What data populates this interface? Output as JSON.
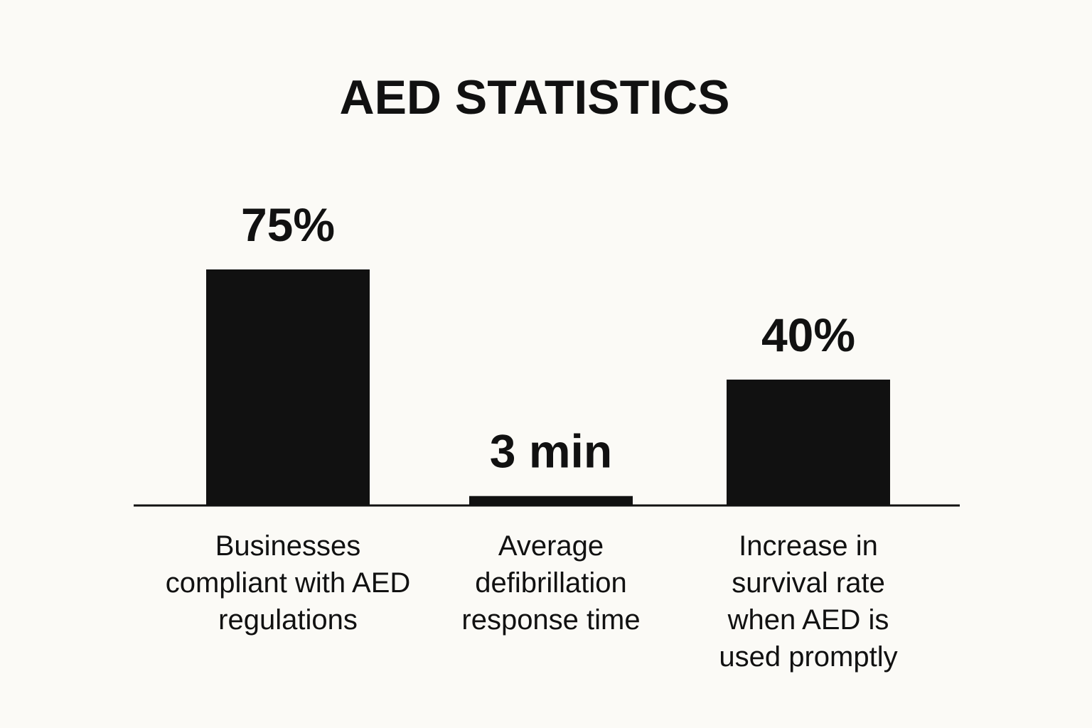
{
  "chart_data": {
    "type": "bar",
    "title": "AED STATISTICS",
    "categories": [
      "Businesses compliant with AED regulations",
      "Average defibrillation response time",
      "Increase in survival rate when AED is used promptly"
    ],
    "values": [
      75,
      3,
      40
    ],
    "value_labels": [
      "75%",
      "3 min",
      "40%"
    ],
    "color": "#111111"
  }
}
